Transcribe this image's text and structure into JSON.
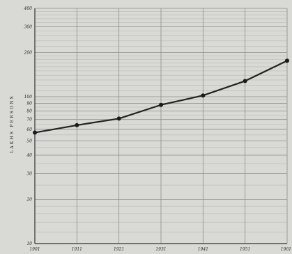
{
  "chart_data": {
    "type": "line",
    "title": "",
    "xlabel": "",
    "ylabel": "LAKHS  PERSONS",
    "x_ticks": [
      "1901",
      "1911",
      "1921",
      "1931",
      "1941",
      "1951",
      "1961"
    ],
    "y_ticks": [
      "10",
      "20",
      "30",
      "40",
      "50",
      "60",
      "70",
      "80",
      "90",
      "100",
      "200",
      "300",
      "400"
    ],
    "y_scale": "log",
    "ylim": [
      10,
      400
    ],
    "xlim": [
      1901,
      1961
    ],
    "grid": true,
    "legend": "none",
    "series": [
      {
        "x": [
          1901,
          1911,
          1921,
          1931,
          1941,
          1951,
          1961
        ],
        "values": [
          57,
          64,
          71,
          88,
          102,
          128,
          176
        ]
      }
    ],
    "colors": {
      "background": "#d9d9d5",
      "grid_major": "#8c8c88",
      "grid_minor": "#b8b8b4",
      "line": "#222222",
      "marker": "#1a1a1a"
    }
  }
}
